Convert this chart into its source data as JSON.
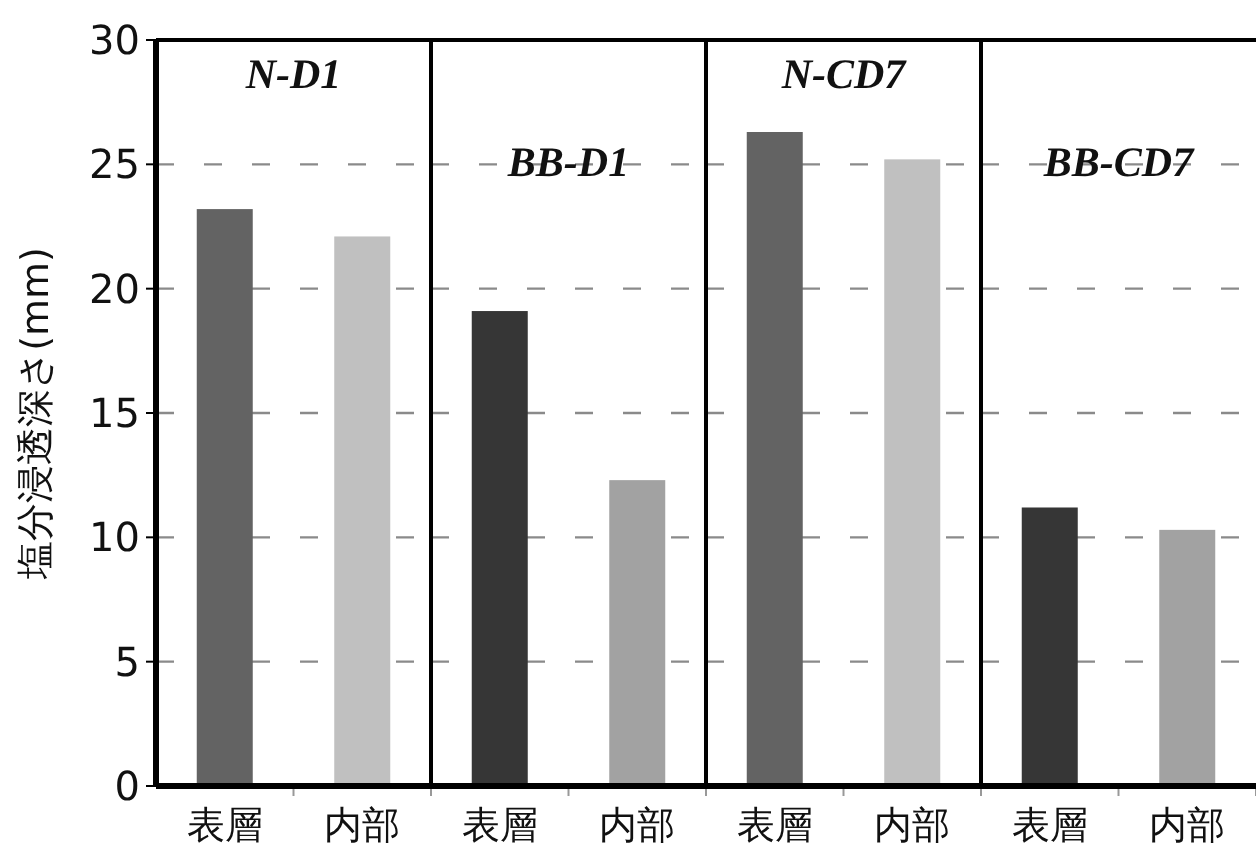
{
  "chart_data": [
    {
      "type": "bar",
      "title": "N-D1",
      "ylabel": "塩分浸透深さ(mm)",
      "categories": [
        "表層",
        "内部"
      ],
      "values": [
        23.2,
        22.1
      ],
      "colors": [
        "#636363",
        "#c0c0c0"
      ],
      "ylim": [
        0,
        30
      ],
      "yticks": [
        0,
        5,
        10,
        15,
        20,
        25,
        30
      ],
      "grid": "y"
    },
    {
      "type": "bar",
      "title": "BB-D1",
      "categories": [
        "表層",
        "内部"
      ],
      "values": [
        19.1,
        12.3
      ],
      "colors": [
        "#363636",
        "#a2a2a2"
      ],
      "ylim": [
        0,
        30
      ],
      "yticks": [
        0,
        5,
        10,
        15,
        20,
        25,
        30
      ],
      "grid": "y",
      "tick_labels": "x"
    },
    {
      "type": "bar",
      "title": "N-CD7",
      "categories": [
        "表層",
        "内部"
      ],
      "values": [
        26.3,
        25.2
      ],
      "colors": [
        "#636363",
        "#c0c0c0"
      ],
      "ylim": [
        0,
        30
      ],
      "yticks": [
        0,
        5,
        10,
        15,
        20,
        25,
        30
      ],
      "grid": "y",
      "tick_labels": "x"
    },
    {
      "type": "bar",
      "title": "BB-CD7",
      "categories": [
        "表層",
        "内部"
      ],
      "values": [
        11.2,
        10.3
      ],
      "colors": [
        "#363636",
        "#a2a2a2"
      ],
      "ylim": [
        0,
        30
      ],
      "yticks": [
        0,
        5,
        10,
        15,
        20,
        25,
        30
      ],
      "grid": "y",
      "tick_labels": "x"
    }
  ]
}
